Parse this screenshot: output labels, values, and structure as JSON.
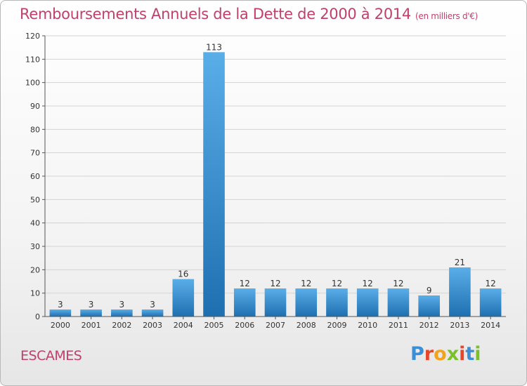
{
  "header": {
    "title": "Remboursements Annuels de la Dette de 2000 à 2014",
    "unit": "(en milliers d'€)"
  },
  "footer": {
    "commune": "ESCAMES",
    "logo": "Proxiti"
  },
  "colors": {
    "title": "#c0406a",
    "bar_light": "#5aaee8",
    "bar_dark": "#1e6fb0"
  },
  "chart_data": {
    "type": "bar",
    "title": "Remboursements Annuels de la Dette de 2000 à 2014",
    "xlabel": "",
    "ylabel": "",
    "ylim": [
      0,
      120
    ],
    "yticks": [
      0,
      10,
      20,
      30,
      40,
      50,
      60,
      70,
      80,
      90,
      100,
      110,
      120
    ],
    "categories": [
      "2000",
      "2001",
      "2002",
      "2003",
      "2004",
      "2005",
      "2006",
      "2007",
      "2008",
      "2009",
      "2010",
      "2011",
      "2012",
      "2013",
      "2014"
    ],
    "values": [
      3,
      3,
      3,
      3,
      16,
      113,
      12,
      12,
      12,
      12,
      12,
      12,
      9,
      21,
      12
    ],
    "grid": true,
    "legend": "none"
  }
}
